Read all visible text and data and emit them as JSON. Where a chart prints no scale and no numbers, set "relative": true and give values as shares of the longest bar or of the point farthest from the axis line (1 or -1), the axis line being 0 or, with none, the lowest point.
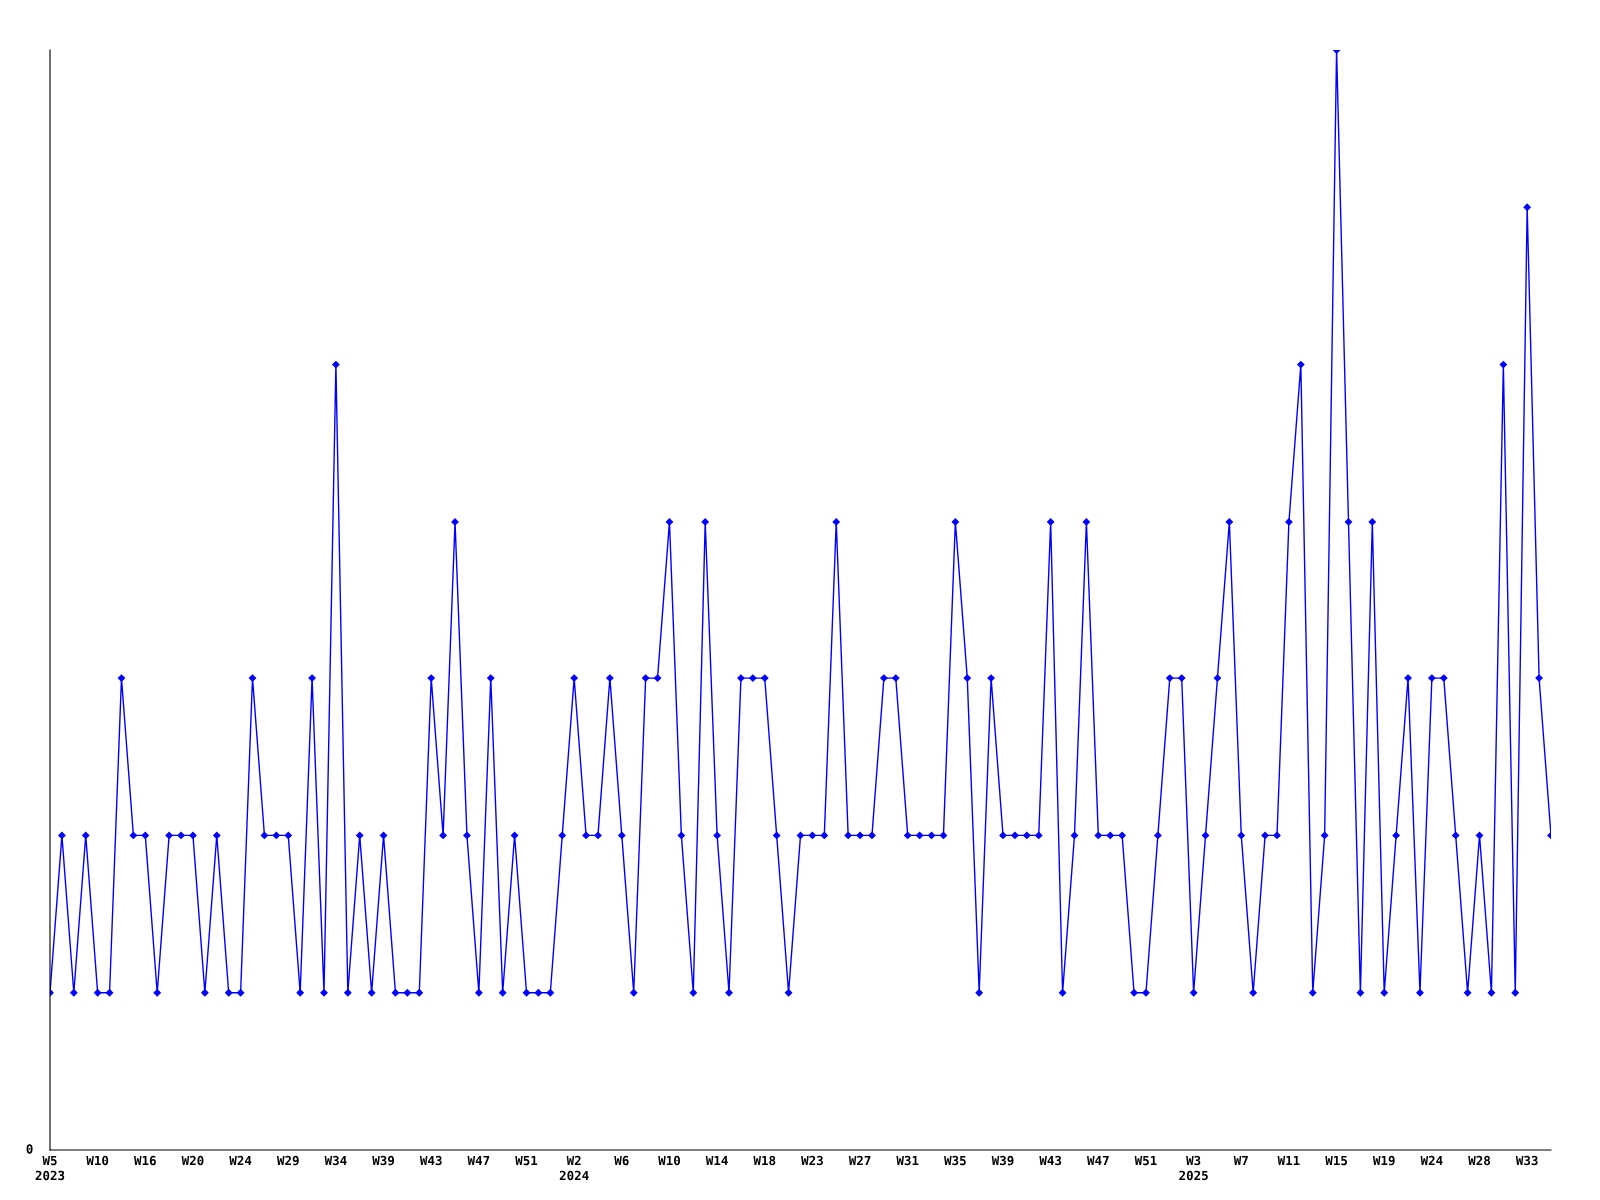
{
  "chart_data": {
    "type": "line",
    "relative": true,
    "marker": "diamond",
    "line_style": "solid",
    "grid": false,
    "legend": false,
    "annotations": [
      "0"
    ],
    "categories": [
      "W5\n2023",
      null,
      null,
      null,
      "W10",
      null,
      null,
      null,
      "W16",
      null,
      null,
      null,
      "W20",
      null,
      null,
      null,
      "W24",
      null,
      null,
      null,
      "W29",
      null,
      null,
      null,
      "W34",
      null,
      null,
      null,
      "W39",
      null,
      null,
      null,
      "W43",
      null,
      null,
      null,
      "W47",
      null,
      null,
      null,
      "W51",
      null,
      null,
      null,
      "W2\n2024",
      null,
      null,
      null,
      "W6",
      null,
      null,
      null,
      "W10",
      null,
      null,
      null,
      "W14",
      null,
      null,
      null,
      "W18",
      null,
      null,
      null,
      "W23",
      null,
      null,
      null,
      "W27",
      null,
      null,
      null,
      "W31",
      null,
      null,
      null,
      "W35",
      null,
      null,
      null,
      "W39",
      null,
      null,
      null,
      "W43",
      null,
      null,
      null,
      "W47",
      null,
      null,
      null,
      "W51",
      null,
      null,
      null,
      "W3\n2025",
      null,
      null,
      null,
      "W7",
      null,
      null,
      null,
      "W11",
      null,
      null,
      null,
      "W15",
      null,
      null,
      null,
      "W19",
      null,
      null,
      null,
      "W24",
      null,
      null,
      null,
      "W28",
      null,
      null,
      null,
      "W33",
      null,
      null
    ],
    "series": [
      {
        "color": "#0000ff",
        "values": [
          0.143,
          0.286,
          0.143,
          0.286,
          0.143,
          0.143,
          0.429,
          0.286,
          0.286,
          0.143,
          0.286,
          0.286,
          0.286,
          0.143,
          0.286,
          0.143,
          0.143,
          0.429,
          0.286,
          0.286,
          0.286,
          0.143,
          0.429,
          0.143,
          0.714,
          0.143,
          0.286,
          0.143,
          0.286,
          0.143,
          0.143,
          0.143,
          0.429,
          0.286,
          0.571,
          0.286,
          0.143,
          0.429,
          0.143,
          0.286,
          0.143,
          0.143,
          0.143,
          0.286,
          0.429,
          0.286,
          0.286,
          0.429,
          0.286,
          0.143,
          0.429,
          0.429,
          0.571,
          0.286,
          0.143,
          0.571,
          0.286,
          0.143,
          0.429,
          0.429,
          0.429,
          0.286,
          0.143,
          0.286,
          0.286,
          0.286,
          0.571,
          0.286,
          0.286,
          0.286,
          0.429,
          0.429,
          0.286,
          0.286,
          0.286,
          0.286,
          0.571,
          0.429,
          0.143,
          0.429,
          0.286,
          0.286,
          0.286,
          0.286,
          0.571,
          0.143,
          0.286,
          0.571,
          0.286,
          0.286,
          0.286,
          0.143,
          0.143,
          0.286,
          0.429,
          0.429,
          0.143,
          0.286,
          0.429,
          0.571,
          0.286,
          0.143,
          0.286,
          0.286,
          0.571,
          0.714,
          0.143,
          0.286,
          1,
          0.571,
          0.143,
          0.571,
          0.143,
          0.286,
          0.429,
          0.143,
          0.429,
          0.429,
          0.286,
          0.143,
          0.286,
          0.143,
          0.714,
          0.143,
          0.857,
          0.429,
          0.286
        ]
      }
    ]
  }
}
